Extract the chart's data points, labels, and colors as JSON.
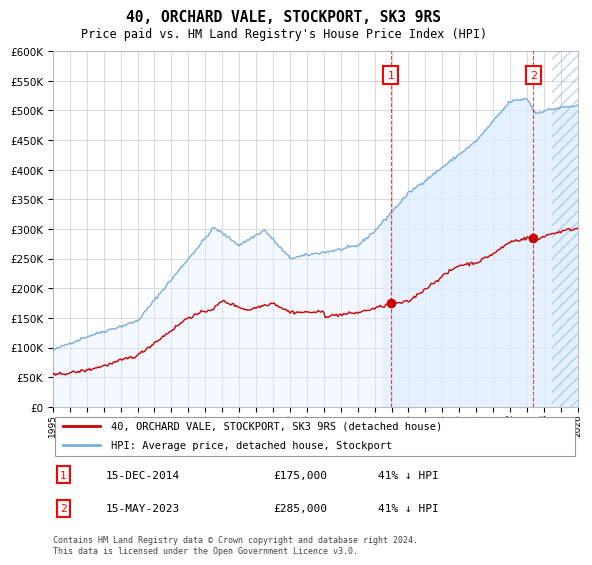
{
  "title": "40, ORCHARD VALE, STOCKPORT, SK3 9RS",
  "subtitle": "Price paid vs. HM Land Registry's House Price Index (HPI)",
  "ylabel_ticks": [
    "£0",
    "£50K",
    "£100K",
    "£150K",
    "£200K",
    "£250K",
    "£300K",
    "£350K",
    "£400K",
    "£450K",
    "£500K",
    "£550K",
    "£600K"
  ],
  "ytick_values": [
    0,
    50000,
    100000,
    150000,
    200000,
    250000,
    300000,
    350000,
    400000,
    450000,
    500000,
    550000,
    600000
  ],
  "year_start": 1995,
  "year_end": 2026,
  "x_tick_years": [
    1995,
    1996,
    1997,
    1998,
    1999,
    2000,
    2001,
    2002,
    2003,
    2004,
    2005,
    2006,
    2007,
    2008,
    2009,
    2010,
    2011,
    2012,
    2013,
    2014,
    2015,
    2016,
    2017,
    2018,
    2019,
    2020,
    2021,
    2022,
    2023,
    2024,
    2025,
    2026
  ],
  "hpi_color": "#7aaed6",
  "hpi_fill_color": "#ddeeff",
  "price_color": "#cc0000",
  "vline_color": "#cc0000",
  "marker1_year": 2014.96,
  "marker1_price": 175000,
  "marker2_year": 2023.37,
  "marker2_price": 285000,
  "legend_label1": "40, ORCHARD VALE, STOCKPORT, SK3 9RS (detached house)",
  "legend_label2": "HPI: Average price, detached house, Stockport",
  "table_row1": [
    "1",
    "15-DEC-2014",
    "£175,000",
    "41% ↓ HPI"
  ],
  "table_row2": [
    "2",
    "15-MAY-2023",
    "£285,000",
    "41% ↓ HPI"
  ],
  "footer": "Contains HM Land Registry data © Crown copyright and database right 2024.\nThis data is licensed under the Open Government Licence v3.0.",
  "grid_color": "#cccccc",
  "hatch_start": 2024.5
}
